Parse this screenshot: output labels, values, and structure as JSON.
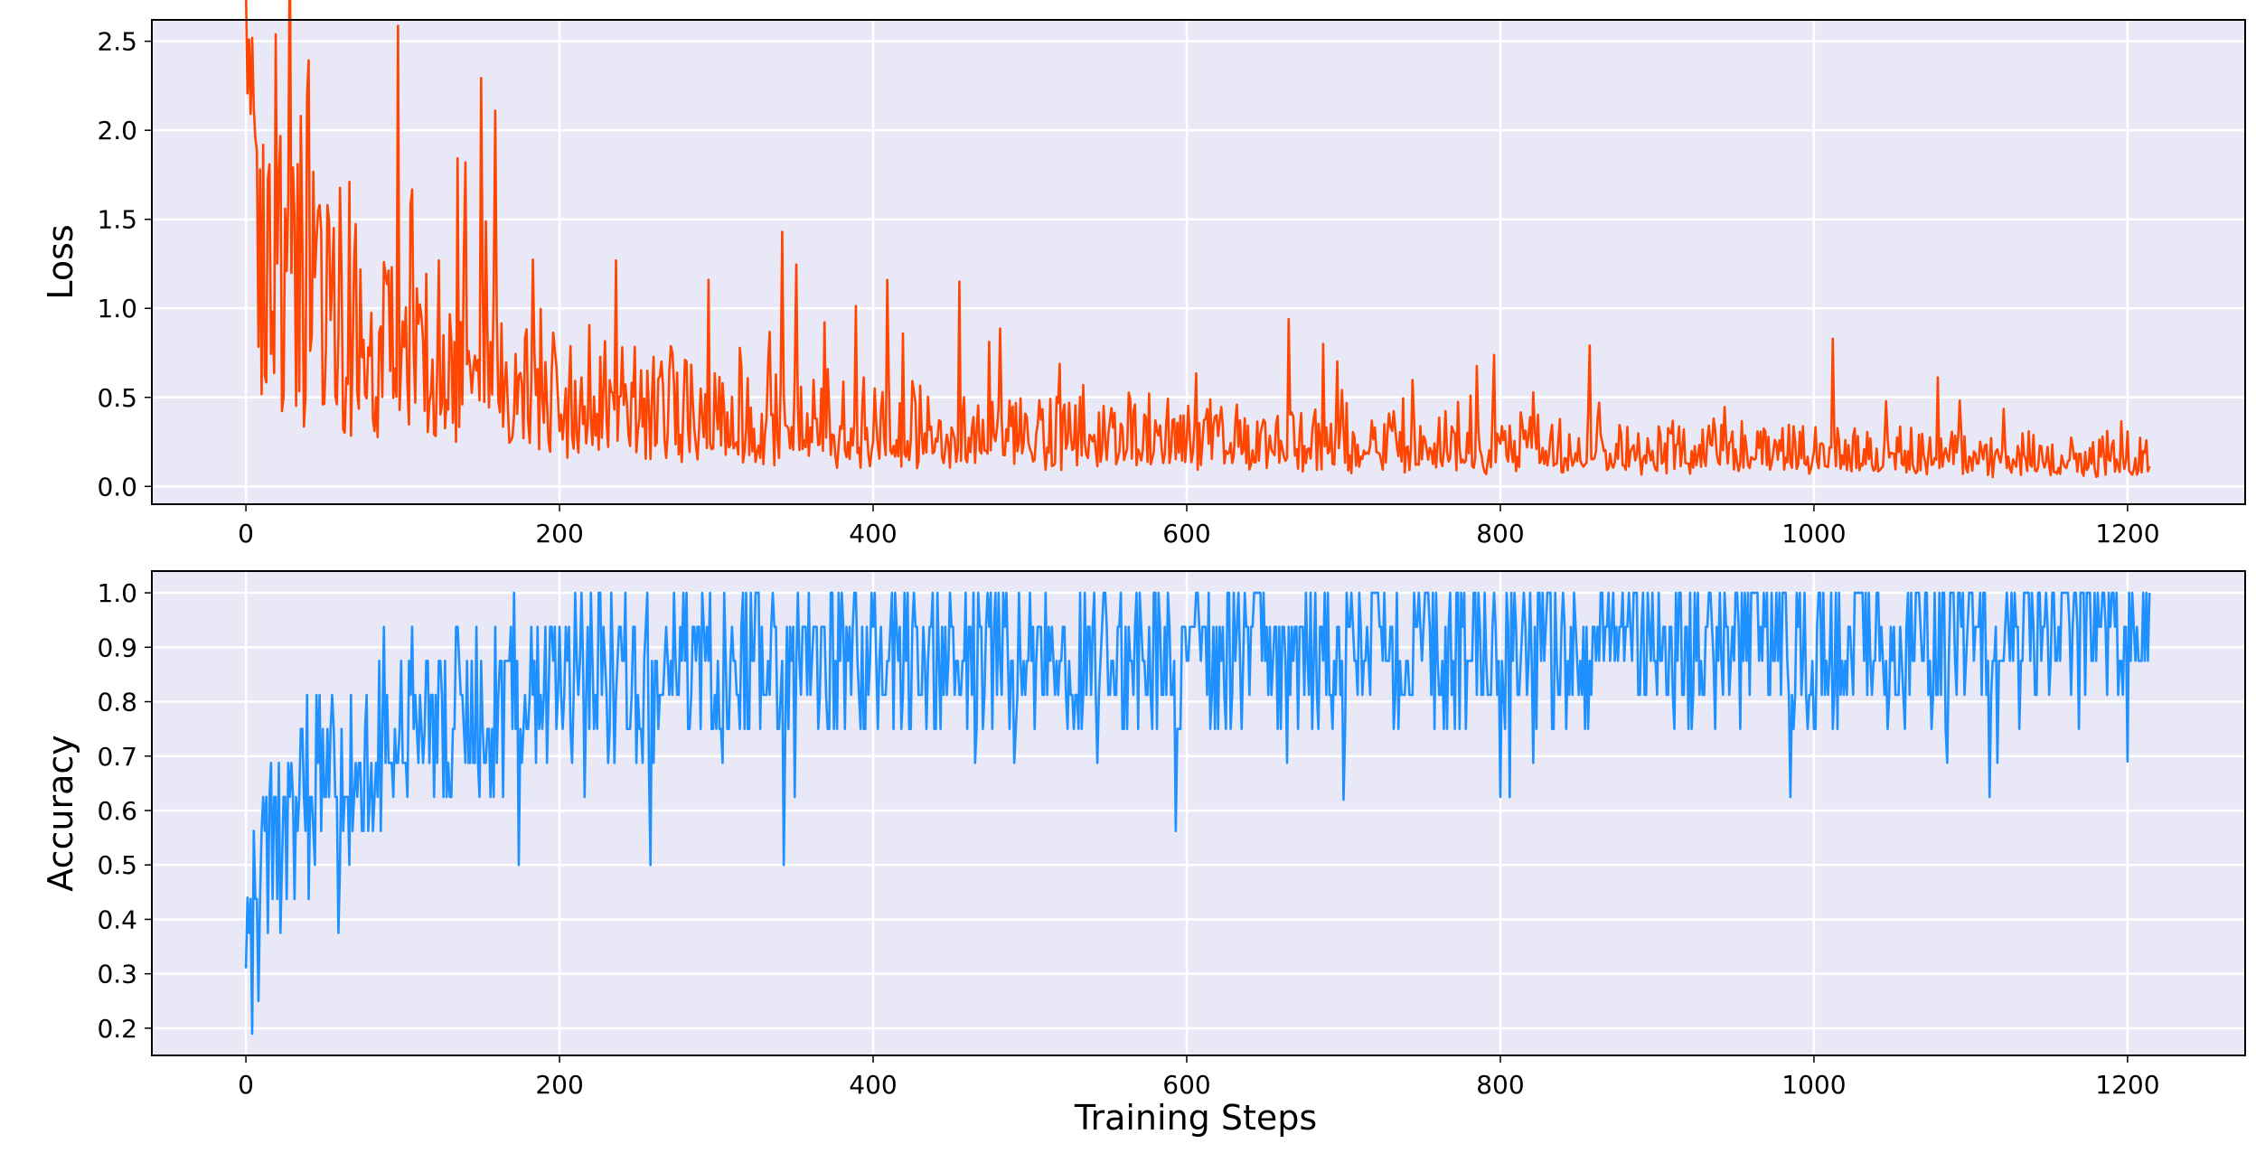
{
  "colors": {
    "plot_background": "#e8e8f6",
    "grid": "#ffffff",
    "axes_frame": "#000000",
    "loss_line": "#ff4500",
    "accuracy_line": "#1e90ff"
  },
  "chart_data": [
    {
      "type": "line",
      "ylabel": "Loss",
      "xlabel": "",
      "xlim": [
        -60,
        1275
      ],
      "ylim": [
        -0.1,
        2.62
      ],
      "xticks": [
        0,
        200,
        400,
        600,
        800,
        1000,
        1200
      ],
      "xtick_labels": [
        "0",
        "200",
        "400",
        "600",
        "800",
        "1000",
        "1200"
      ],
      "yticks": [
        0.0,
        0.5,
        1.0,
        1.5,
        2.0,
        2.5
      ],
      "ytick_labels": [
        "0.0",
        "0.5",
        "1.0",
        "1.5",
        "2.0",
        "2.5"
      ],
      "grid": true,
      "line_color": "#ff4500",
      "num_steps": 1215,
      "envelope_x": [
        0,
        10,
        20,
        40,
        60,
        80,
        100,
        120,
        150,
        180,
        200,
        250,
        300,
        400,
        500,
        600,
        700,
        800,
        900,
        1000,
        1100,
        1214
      ],
      "envelope_y": [
        1.6,
        1.2,
        1.0,
        0.95,
        0.85,
        0.8,
        0.75,
        0.7,
        0.65,
        0.58,
        0.5,
        0.42,
        0.38,
        0.33,
        0.29,
        0.27,
        0.24,
        0.22,
        0.2,
        0.19,
        0.17,
        0.16
      ],
      "spikes": [
        {
          "x": 2,
          "y": 2.51
        },
        {
          "x": 5,
          "y": 2.13
        },
        {
          "x": 9,
          "y": 1.78
        },
        {
          "x": 21,
          "y": 1.75
        },
        {
          "x": 27,
          "y": 1.62
        },
        {
          "x": 35,
          "y": 2.08
        },
        {
          "x": 39,
          "y": 2.19
        },
        {
          "x": 52,
          "y": 1.58
        },
        {
          "x": 105,
          "y": 1.58
        },
        {
          "x": 139,
          "y": 1.31
        },
        {
          "x": 140,
          "y": 1.82
        },
        {
          "x": 159,
          "y": 2.11
        },
        {
          "x": 295,
          "y": 1.16
        },
        {
          "x": 342,
          "y": 1.43
        },
        {
          "x": 409,
          "y": 1.16
        },
        {
          "x": 455,
          "y": 1.15
        },
        {
          "x": 665,
          "y": 0.94
        },
        {
          "x": 1012,
          "y": 0.83
        }
      ]
    },
    {
      "type": "line",
      "ylabel": "Accuracy",
      "xlabel": "Training Steps",
      "xlim": [
        -60,
        1275
      ],
      "ylim": [
        0.15,
        1.04
      ],
      "xticks": [
        0,
        200,
        400,
        600,
        800,
        1000,
        1200
      ],
      "xtick_labels": [
        "0",
        "200",
        "400",
        "600",
        "800",
        "1000",
        "1200"
      ],
      "yticks": [
        0.2,
        0.3,
        0.4,
        0.5,
        0.6,
        0.7,
        0.8,
        0.9,
        1.0
      ],
      "ytick_labels": [
        "0.2",
        "0.3",
        "0.4",
        "0.5",
        "0.6",
        "0.7",
        "0.8",
        "0.9",
        "1.0"
      ],
      "grid": true,
      "line_color": "#1e90ff",
      "num_steps": 1215,
      "quantization": 0.0625,
      "envelope_x": [
        0,
        10,
        20,
        40,
        60,
        80,
        100,
        130,
        160,
        200,
        250,
        300,
        400,
        500,
        600,
        700,
        800,
        900,
        1000,
        1100,
        1214
      ],
      "envelope_y": [
        0.35,
        0.5,
        0.56,
        0.62,
        0.66,
        0.7,
        0.74,
        0.78,
        0.8,
        0.83,
        0.85,
        0.86,
        0.87,
        0.88,
        0.89,
        0.9,
        0.91,
        0.92,
        0.92,
        0.93,
        0.93
      ],
      "dips": [
        {
          "x": 4,
          "y": 0.19
        },
        {
          "x": 0,
          "y": 0.31
        },
        {
          "x": 1,
          "y": 0.44
        },
        {
          "x": 258,
          "y": 0.5
        },
        {
          "x": 343,
          "y": 0.5
        },
        {
          "x": 700,
          "y": 0.62
        },
        {
          "x": 1200,
          "y": 0.69
        }
      ]
    }
  ]
}
